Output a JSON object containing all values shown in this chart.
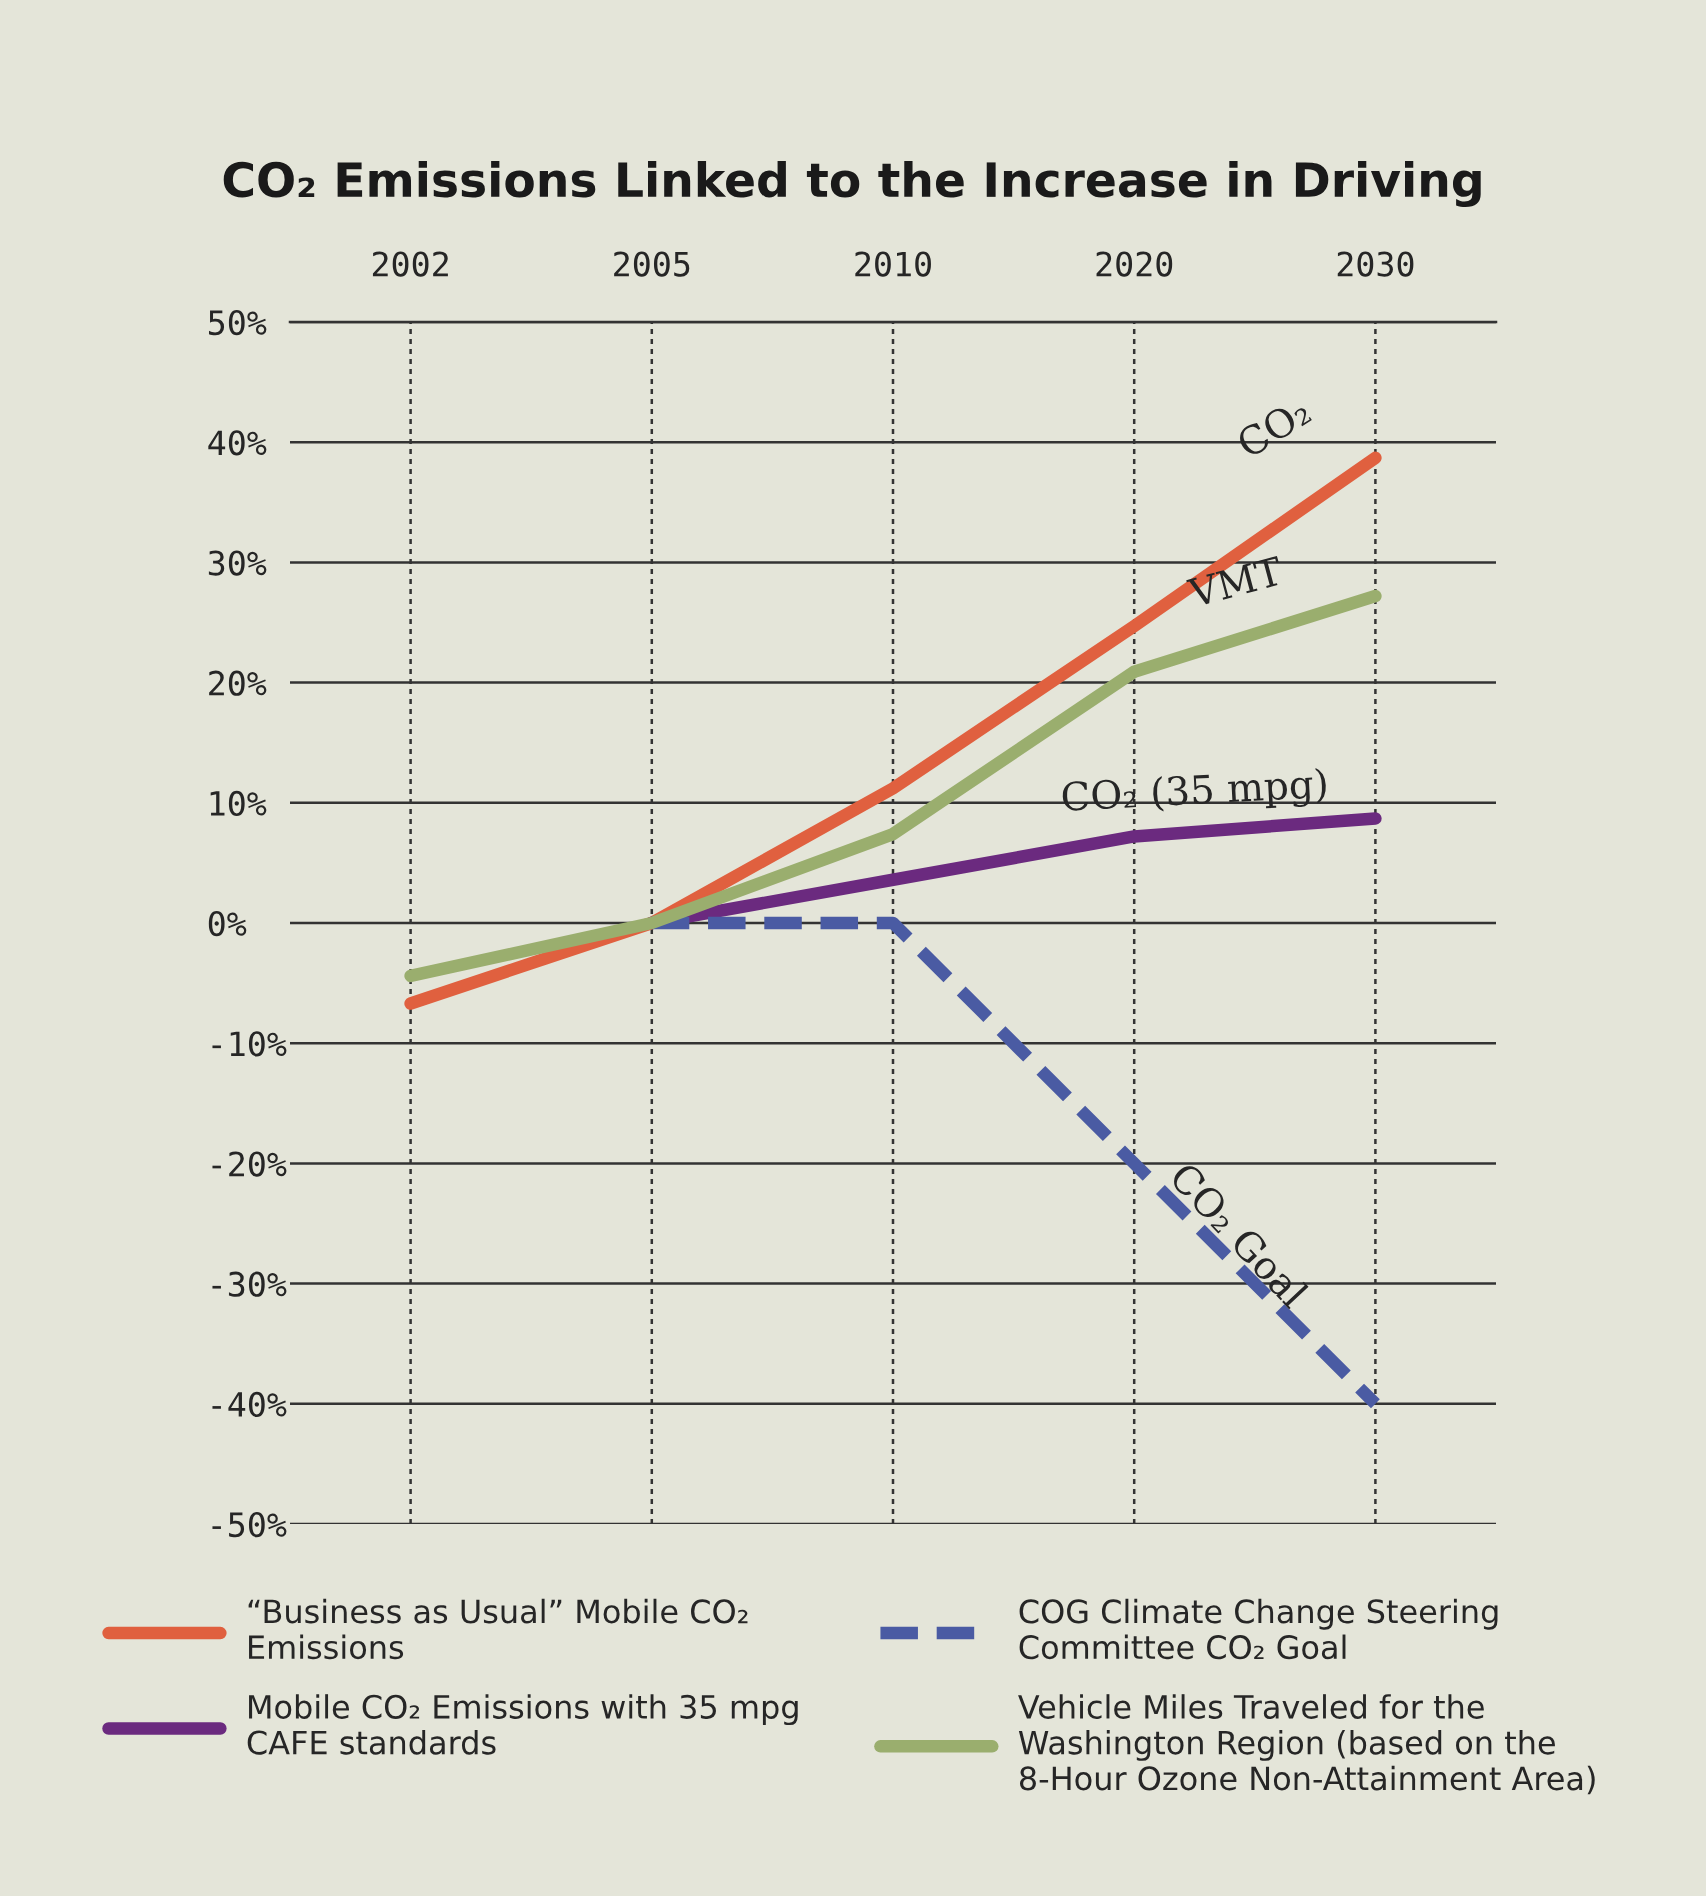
{
  "chart_data": {
    "type": "line",
    "title": "CO₂ Emissions Linked to the Increase in Driving",
    "categories": [
      "2002",
      "2005",
      "2010",
      "2020",
      "2030"
    ],
    "series": [
      {
        "name": "“Business as Usual” Mobile CO₂ Emissions",
        "color": "#e0603f",
        "values": [
          -6.7,
          0,
          11.2,
          24.7,
          38.7
        ]
      },
      {
        "name": "Mobile CO₂ Emissions with 35 mpg CAFE standards",
        "color": "#6b2a7f",
        "values": [
          null,
          0,
          3.6,
          7.2,
          8.7
        ]
      },
      {
        "name": "COG Climate Change Steering Committee CO₂ Goal",
        "color": "#4a5ba3",
        "values": [
          null,
          0,
          0,
          -20,
          -40
        ],
        "line_style": "dashed"
      },
      {
        "name": "Vehicle Miles Traveled for the Washington Region (based on the 8-Hour Ozone Non-Attainment Area)",
        "color": "#9aae6e",
        "values": [
          -4.4,
          0,
          7.4,
          20.9,
          27.2
        ]
      }
    ],
    "ylim": [
      -50,
      50
    ],
    "yticks": [
      {
        "value": 50,
        "label": "50%"
      },
      {
        "value": 40,
        "label": "40%"
      },
      {
        "value": 30,
        "label": "30%"
      },
      {
        "value": 20,
        "label": "20%"
      },
      {
        "value": 10,
        "label": "10%"
      },
      {
        "value": 0,
        "label": "0%"
      },
      {
        "value": -10,
        "label": "-10%"
      },
      {
        "value": -20,
        "label": "-20%"
      },
      {
        "value": -30,
        "label": "-30%"
      },
      {
        "value": -40,
        "label": "-40%"
      },
      {
        "value": -50,
        "label": "-50%"
      }
    ],
    "grid": true,
    "legend": "bottom",
    "marker": "none",
    "line_style": "solid",
    "annotations": [
      {
        "text": "CO₂",
        "x": "2030",
        "y": 38.7
      },
      {
        "text": "VMT",
        "x": "2030",
        "y": 27.2
      },
      {
        "text": "CO₂ (35 mpg)",
        "x": "2030",
        "y": 8.7
      },
      {
        "text": "CO₂ Goal",
        "x": "2030",
        "y": -40
      }
    ]
  }
}
